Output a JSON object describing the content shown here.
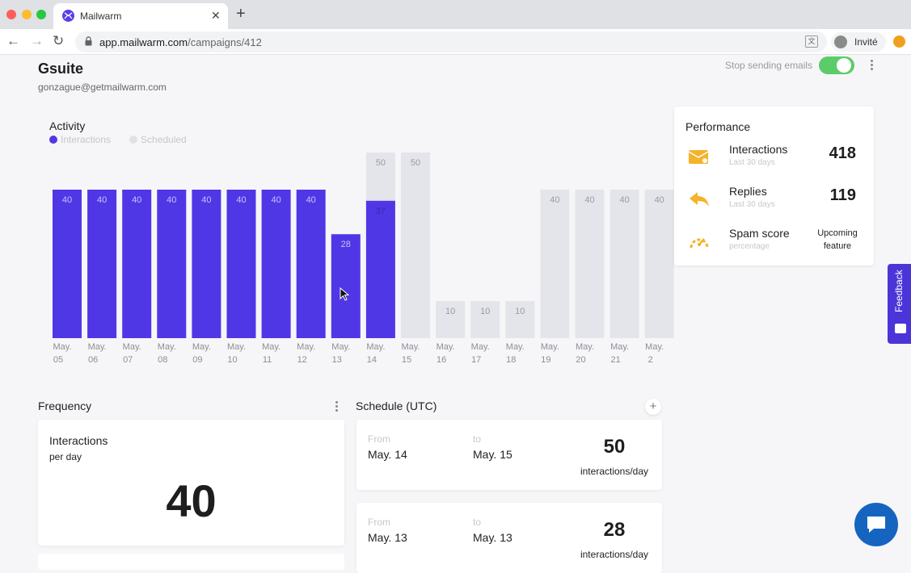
{
  "browser": {
    "tab_title": "Mailwarm",
    "url_host": "app.mailwarm.com",
    "url_path": "/campaigns/412",
    "profile_label": "Invité"
  },
  "header": {
    "title": "Gsuite",
    "email": "gonzague@getmailwarm.com",
    "stop_sending_label": "Stop sending emails",
    "stop_sending_on": true
  },
  "activity": {
    "title": "Activity",
    "legend": {
      "interactions": "Interactions",
      "scheduled": "Scheduled"
    }
  },
  "chart_data": {
    "type": "bar",
    "title": "Activity",
    "categories": [
      "May. 05",
      "May. 06",
      "May. 07",
      "May. 08",
      "May. 09",
      "May. 10",
      "May. 11",
      "May. 12",
      "May. 13",
      "May. 14",
      "May. 15",
      "May. 16",
      "May. 17",
      "May. 18",
      "May. 19",
      "May. 20",
      "May. 21",
      "May. 2"
    ],
    "series": [
      {
        "name": "Interactions",
        "color": "#5037e6",
        "values": [
          40,
          40,
          40,
          40,
          40,
          40,
          40,
          40,
          28,
          37,
          null,
          null,
          null,
          null,
          null,
          null,
          null,
          null
        ]
      },
      {
        "name": "Scheduled",
        "color": "#e4e5ea",
        "values": [
          null,
          null,
          null,
          null,
          null,
          null,
          null,
          null,
          null,
          50,
          50,
          10,
          10,
          10,
          40,
          40,
          40,
          40
        ]
      }
    ],
    "ylim": [
      0,
      50
    ],
    "grid": false,
    "legend_position": "top-left"
  },
  "performance": {
    "title": "Performance",
    "interactions": {
      "label": "Interactions",
      "sub": "Last 30 days",
      "value": "418"
    },
    "replies": {
      "label": "Replies",
      "sub": "Last 30 days",
      "value": "119"
    },
    "spam": {
      "label": "Spam score",
      "sub": "percentage",
      "value": "Upcoming feature"
    }
  },
  "feedback": {
    "label": "Feedback"
  },
  "frequency": {
    "title": "Frequency",
    "label": "Interactions",
    "sub": "per day",
    "value": "40"
  },
  "schedule": {
    "title": "Schedule (UTC)",
    "add_label": "+",
    "items": [
      {
        "from_label": "From",
        "from": "May. 14",
        "to_label": "to",
        "to": "May. 15",
        "value": "50",
        "unit": "interactions/day"
      },
      {
        "from_label": "From",
        "from": "May. 13",
        "to_label": "to",
        "to": "May. 13",
        "value": "28",
        "unit": "interactions/day"
      }
    ]
  },
  "colors": {
    "accent": "#5037e6",
    "scheduled": "#e4e5ea",
    "toggle_on": "#5ccc6a",
    "chat": "#1565c0"
  }
}
